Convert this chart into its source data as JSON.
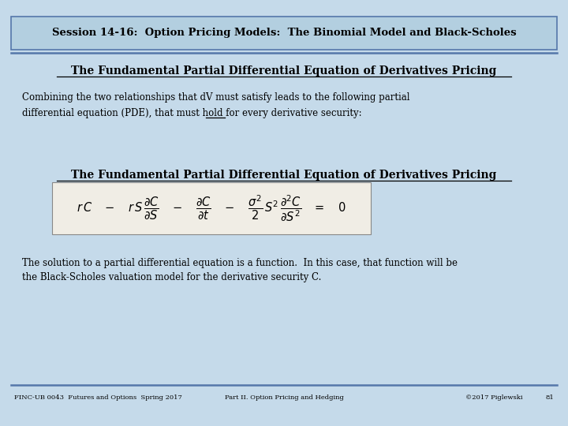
{
  "bg_color": "#c5daea",
  "header_bg": "#b3cfe0",
  "header_border": "#5577aa",
  "divider_color": "#5577aa",
  "header_text": "Session 14-16:  Option Pricing Models:  The Binomial Model and Black-Scholes",
  "title1": "The Fundamental Partial Differential Equation of Derivatives Pricing",
  "body_line1": "Combining the two relationships that dV must satisfy leads to the following partial",
  "body_line2_pre": "differential equation (PDE), that must hold for ",
  "body_line2_ul": "every",
  "body_line2_post": " derivative security:",
  "title2": "The Fundamental Partial Differential Equation of Derivatives Pricing",
  "sol_line1": "The solution to a partial differential equation is a function.  In this case, that function will be",
  "sol_line2": "the Black-Scholes valuation model for the derivative security C.",
  "footer_left": "FINC-UB 0043  Futures and Options  Spring 2017",
  "footer_center": "Part II. Option Pricing and Hedging",
  "footer_right": "©2017 Piglewski",
  "footer_page": "81",
  "text_color": "#000000",
  "eq_bg": "#f0ede5",
  "eq_border": "#888888"
}
